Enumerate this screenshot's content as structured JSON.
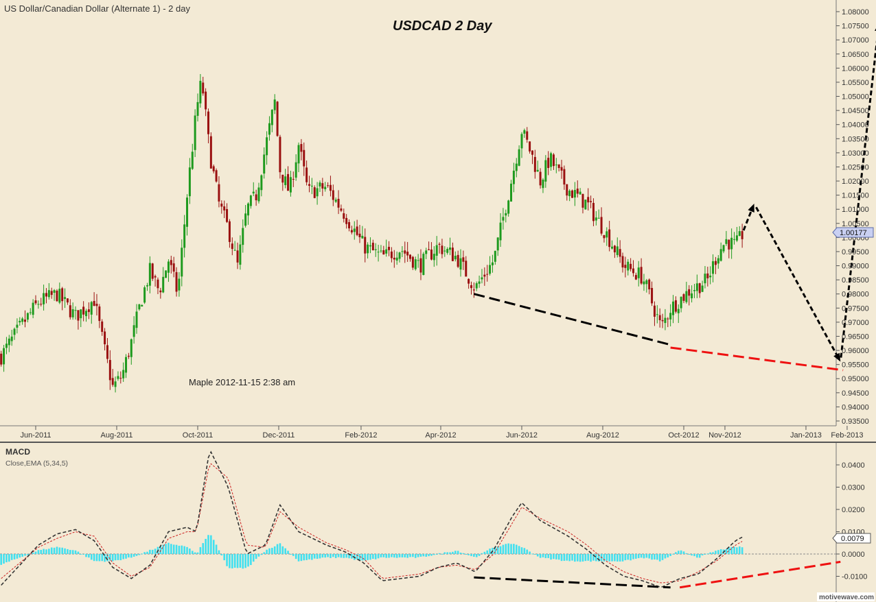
{
  "header": {
    "symbol_title": "US Dollar/Canadian Dollar (Alternate 1) - 2 day",
    "chart_title": "USDCAD  2 Day",
    "annotation": "Maple 2012-11-15  2:38 am",
    "watermark": "motivewave.com"
  },
  "macd_panel": {
    "label": "MACD",
    "params": "Close,EMA (5,34,5)",
    "current_value": "0.0079"
  },
  "colors": {
    "background": "#f3ead5",
    "up_candle": "#1e9a1e",
    "down_candle": "#9a1010",
    "histogram": "#40e0f0",
    "macd_line": "#333333",
    "signal_line": "#cc2020",
    "projection": "#000000",
    "divergence_primary": "#000000",
    "divergence_secondary": "#ee1111",
    "price_badge": "#c9d0f2"
  },
  "chart_data": [
    {
      "type": "candlestick",
      "current_price": "1.00177",
      "ylim": [
        0.933,
        1.083
      ],
      "y_ticks": [
        "1.08000",
        "1.07500",
        "1.07000",
        "1.06500",
        "1.06000",
        "1.05500",
        "1.05000",
        "1.04500",
        "1.04000",
        "1.03500",
        "1.03000",
        "1.02500",
        "1.02000",
        "1.01500",
        "1.01000",
        "1.00500",
        "1.00000",
        "0.99500",
        "0.99000",
        "0.98500",
        "0.98000",
        "0.97500",
        "0.97000",
        "0.96500",
        "0.96000",
        "0.95500",
        "0.95000",
        "0.94500",
        "0.94000",
        "0.93500"
      ],
      "x_labels": [
        "Jun-2011",
        "Aug-2011",
        "Oct-2011",
        "Dec-2011",
        "Feb-2012",
        "Apr-2012",
        "Jun-2012",
        "Aug-2012",
        "Oct-2012",
        "Nov-2012",
        "Jan-2013",
        "Feb-2013"
      ],
      "close_path": [
        [
          "2011-05-06",
          0.958
        ],
        [
          "2011-05-20",
          0.968
        ],
        [
          "2011-06-03",
          0.977
        ],
        [
          "2011-06-17",
          0.98
        ],
        [
          "2011-07-01",
          0.972
        ],
        [
          "2011-07-15",
          0.978
        ],
        [
          "2011-07-22",
          0.962
        ],
        [
          "2011-07-29",
          0.947
        ],
        [
          "2011-08-05",
          0.951
        ],
        [
          "2011-08-12",
          0.963
        ],
        [
          "2011-08-19",
          0.977
        ],
        [
          "2011-08-26",
          0.988
        ],
        [
          "2011-09-02",
          0.981
        ],
        [
          "2011-09-09",
          0.992
        ],
        [
          "2011-09-16",
          0.98
        ],
        [
          "2011-09-23",
          1.015
        ],
        [
          "2011-09-30",
          1.045
        ],
        [
          "2011-10-04",
          1.056
        ],
        [
          "2011-10-10",
          1.03
        ],
        [
          "2011-10-17",
          1.012
        ],
        [
          "2011-10-24",
          1.003
        ],
        [
          "2011-10-31",
          0.99
        ],
        [
          "2011-11-07",
          1.01
        ],
        [
          "2011-11-14",
          1.015
        ],
        [
          "2011-11-21",
          1.032
        ],
        [
          "2011-11-28",
          1.048
        ],
        [
          "2011-12-02",
          1.024
        ],
        [
          "2011-12-09",
          1.016
        ],
        [
          "2011-12-16",
          1.033
        ],
        [
          "2011-12-23",
          1.016
        ],
        [
          "2012-01-06",
          1.018
        ],
        [
          "2012-01-20",
          1.008
        ],
        [
          "2012-02-03",
          0.997
        ],
        [
          "2012-02-17",
          0.993
        ],
        [
          "2012-03-02",
          0.996
        ],
        [
          "2012-03-16",
          0.99
        ],
        [
          "2012-03-30",
          0.997
        ],
        [
          "2012-04-13",
          0.993
        ],
        [
          "2012-04-27",
          0.982
        ],
        [
          "2012-05-11",
          0.992
        ],
        [
          "2012-05-25",
          1.022
        ],
        [
          "2012-06-01",
          1.038
        ],
        [
          "2012-06-08",
          1.03
        ],
        [
          "2012-06-15",
          1.02
        ],
        [
          "2012-06-22",
          1.028
        ],
        [
          "2012-07-06",
          1.017
        ],
        [
          "2012-07-20",
          1.012
        ],
        [
          "2012-08-03",
          1.002
        ],
        [
          "2012-08-17",
          0.99
        ],
        [
          "2012-08-31",
          0.986
        ],
        [
          "2012-09-07",
          0.977
        ],
        [
          "2012-09-14",
          0.968
        ],
        [
          "2012-09-21",
          0.975
        ],
        [
          "2012-10-05",
          0.981
        ],
        [
          "2012-10-19",
          0.985
        ],
        [
          "2012-10-26",
          0.994
        ],
        [
          "2012-11-02",
          0.999
        ],
        [
          "2012-11-09",
          0.997
        ],
        [
          "2012-11-15",
          1.0018
        ]
      ],
      "projection_path": [
        [
          "2012-11-15",
          1.0025
        ],
        [
          "2012-11-23",
          1.012
        ],
        [
          "2013-01-27",
          0.956
        ],
        [
          "2013-02-25",
          1.076
        ]
      ],
      "divergence_lines": [
        {
          "color": "black",
          "dashed": true,
          "points": [
            [
              "2012-04-26",
              0.98
            ],
            [
              "2012-09-21",
              0.962
            ]
          ]
        },
        {
          "color": "red",
          "dashed": true,
          "points": [
            [
              "2012-09-21",
              0.961
            ],
            [
              "2013-01-29",
              0.953
            ]
          ]
        }
      ]
    },
    {
      "type": "line",
      "title": "MACD",
      "ylim": [
        -0.0155,
        0.0468
      ],
      "y_ticks": [
        "0.0400",
        "0.0300",
        "0.0200",
        "0.0100",
        "0.0000",
        "-0.0100"
      ],
      "series": [
        {
          "values": [
            [
              "2011-05-06",
              -0.014
            ],
            [
              "2011-05-20",
              -0.005
            ],
            [
              "2011-06-03",
              0.004
            ],
            [
              "2011-06-17",
              0.009
            ],
            [
              "2011-07-01",
              0.011
            ],
            [
              "2011-07-15",
              0.006
            ],
            [
              "2011-07-29",
              -0.006
            ],
            [
              "2011-08-12",
              -0.011
            ],
            [
              "2011-08-26",
              -0.005
            ],
            [
              "2011-09-09",
              0.01
            ],
            [
              "2011-09-23",
              0.012
            ],
            [
              "2011-09-30",
              0.01
            ],
            [
              "2011-10-10",
              0.047
            ],
            [
              "2011-10-24",
              0.03
            ],
            [
              "2011-11-07",
              0.0
            ],
            [
              "2011-11-21",
              0.004
            ],
            [
              "2011-12-02",
              0.022
            ],
            [
              "2011-12-16",
              0.01
            ],
            [
              "2012-01-06",
              0.004
            ],
            [
              "2012-01-20",
              0.001
            ],
            [
              "2012-02-03",
              -0.004
            ],
            [
              "2012-02-17",
              -0.012
            ],
            [
              "2012-03-02",
              -0.011
            ],
            [
              "2012-03-16",
              -0.01
            ],
            [
              "2012-03-30",
              -0.006
            ],
            [
              "2012-04-13",
              -0.004
            ],
            [
              "2012-04-27",
              -0.008
            ],
            [
              "2012-05-11",
              0.002
            ],
            [
              "2012-05-25",
              0.017
            ],
            [
              "2012-06-01",
              0.023
            ],
            [
              "2012-06-15",
              0.015
            ],
            [
              "2012-07-06",
              0.008
            ],
            [
              "2012-07-20",
              0.002
            ],
            [
              "2012-08-03",
              -0.005
            ],
            [
              "2012-08-17",
              -0.01
            ],
            [
              "2012-08-31",
              -0.012
            ],
            [
              "2012-09-14",
              -0.015
            ],
            [
              "2012-09-28",
              -0.011
            ],
            [
              "2012-10-12",
              -0.009
            ],
            [
              "2012-10-26",
              -0.002
            ],
            [
              "2012-11-09",
              0.006
            ],
            [
              "2012-11-15",
              0.0079
            ]
          ]
        },
        {
          "values": [
            [
              "2011-05-06",
              -0.011
            ],
            [
              "2011-05-20",
              -0.004
            ],
            [
              "2011-06-03",
              0.003
            ],
            [
              "2011-06-17",
              0.007
            ],
            [
              "2011-07-01",
              0.01
            ],
            [
              "2011-07-15",
              0.008
            ],
            [
              "2011-07-29",
              -0.004
            ],
            [
              "2011-08-12",
              -0.01
            ],
            [
              "2011-08-26",
              -0.006
            ],
            [
              "2011-09-09",
              0.007
            ],
            [
              "2011-09-23",
              0.01
            ],
            [
              "2011-09-30",
              0.01
            ],
            [
              "2011-10-10",
              0.041
            ],
            [
              "2011-10-24",
              0.034
            ],
            [
              "2011-11-07",
              0.004
            ],
            [
              "2011-11-21",
              0.003
            ],
            [
              "2011-12-02",
              0.019
            ],
            [
              "2011-12-16",
              0.012
            ],
            [
              "2012-01-06",
              0.005
            ],
            [
              "2012-01-20",
              0.002
            ],
            [
              "2012-02-03",
              -0.002
            ],
            [
              "2012-02-17",
              -0.011
            ],
            [
              "2012-03-02",
              -0.01
            ],
            [
              "2012-03-16",
              -0.009
            ],
            [
              "2012-03-30",
              -0.006
            ],
            [
              "2012-04-13",
              -0.005
            ],
            [
              "2012-04-27",
              -0.007
            ],
            [
              "2012-05-11",
              0.0
            ],
            [
              "2012-05-25",
              0.014
            ],
            [
              "2012-06-01",
              0.021
            ],
            [
              "2012-06-15",
              0.016
            ],
            [
              "2012-07-06",
              0.01
            ],
            [
              "2012-07-20",
              0.004
            ],
            [
              "2012-08-03",
              -0.003
            ],
            [
              "2012-08-17",
              -0.008
            ],
            [
              "2012-08-31",
              -0.011
            ],
            [
              "2012-09-14",
              -0.013
            ],
            [
              "2012-09-28",
              -0.012
            ],
            [
              "2012-10-12",
              -0.008
            ],
            [
              "2012-10-26",
              -0.003
            ],
            [
              "2012-11-09",
              0.004
            ],
            [
              "2012-11-15",
              0.006
            ]
          ]
        }
      ],
      "divergence_lines": [
        {
          "color": "black",
          "dashed": true,
          "points": [
            [
              "2012-04-26",
              -0.0105
            ],
            [
              "2012-09-21",
              -0.015
            ]
          ]
        },
        {
          "color": "red",
          "dashed": true,
          "points": [
            [
              "2012-09-28",
              -0.015
            ],
            [
              "2013-01-27",
              -0.0035
            ]
          ]
        }
      ]
    }
  ]
}
